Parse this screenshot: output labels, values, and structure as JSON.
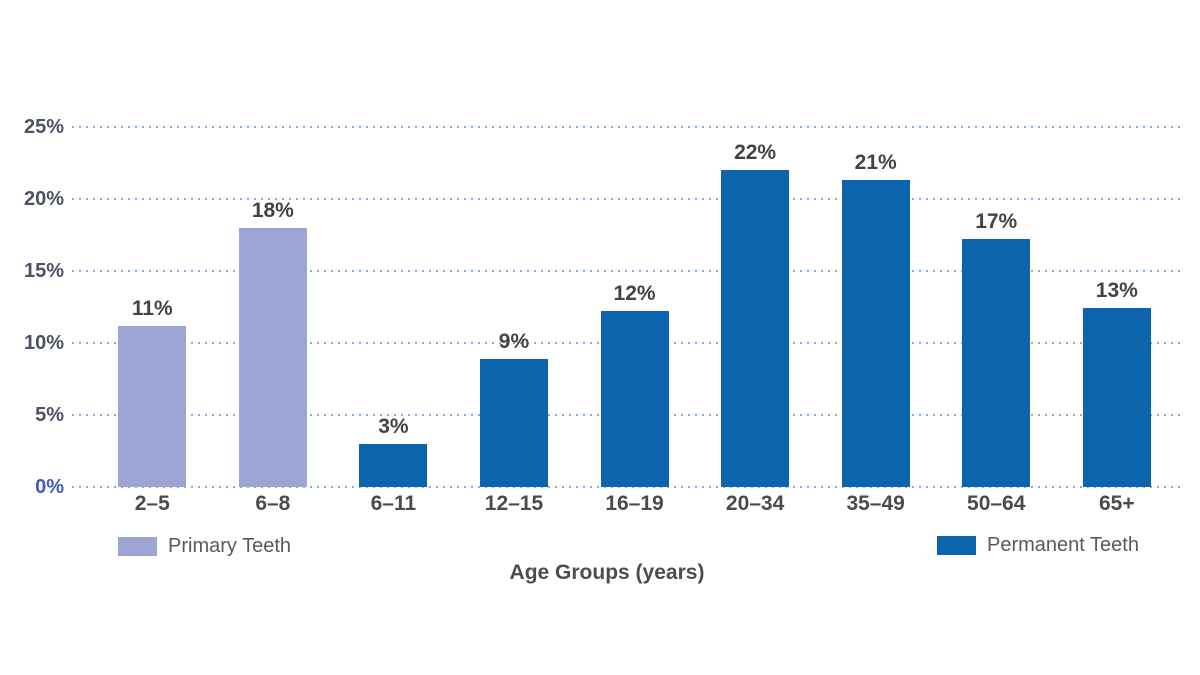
{
  "chart_data": {
    "type": "bar",
    "title": "",
    "xlabel": "Age Groups (years)",
    "ylabel": "",
    "ylim": [
      0,
      25
    ],
    "ytick_interval": 5,
    "yticks": [
      {
        "label": "0%",
        "value": 0
      },
      {
        "label": "5%",
        "value": 5
      },
      {
        "label": "10%",
        "value": 10
      },
      {
        "label": "15%",
        "value": 15
      },
      {
        "label": "20%",
        "value": 20
      },
      {
        "label": "25%",
        "value": 25
      }
    ],
    "grid": {
      "horizontal": true,
      "style": "dotted"
    },
    "categories": [
      "2–5",
      "6–8",
      "6–11",
      "12–15",
      "16–19",
      "20–34",
      "35–49",
      "50–64",
      "65+"
    ],
    "bars": [
      {
        "category": "2–5",
        "value": 11,
        "label": "11%",
        "series": "Primary Teeth",
        "drawn_height_pct": 11.2
      },
      {
        "category": "6–8",
        "value": 18,
        "label": "18%",
        "series": "Primary Teeth",
        "drawn_height_pct": 18.0
      },
      {
        "category": "6–11",
        "value": 3,
        "label": "3%",
        "series": "Permanent Teeth",
        "drawn_height_pct": 3.0
      },
      {
        "category": "12–15",
        "value": 9,
        "label": "9%",
        "series": "Permanent Teeth",
        "drawn_height_pct": 8.9
      },
      {
        "category": "16–19",
        "value": 12,
        "label": "12%",
        "series": "Permanent Teeth",
        "drawn_height_pct": 12.2
      },
      {
        "category": "20–34",
        "value": 22,
        "label": "22%",
        "series": "Permanent Teeth",
        "drawn_height_pct": 22.0
      },
      {
        "category": "35–49",
        "value": 21,
        "label": "21%",
        "series": "Permanent Teeth",
        "drawn_height_pct": 21.3
      },
      {
        "category": "50–64",
        "value": 17,
        "label": "17%",
        "series": "Permanent Teeth",
        "drawn_height_pct": 17.2
      },
      {
        "category": "65+",
        "value": 13,
        "label": "13%",
        "series": "Permanent Teeth",
        "drawn_height_pct": 12.4
      }
    ],
    "legend": {
      "position": "bottom",
      "items": [
        {
          "label": "Primary Teeth",
          "color": "#9CA5D3"
        },
        {
          "label": "Permanent Teeth",
          "color": "#0B64AC"
        }
      ]
    }
  },
  "colors": {
    "primary_teeth": "#9CA5D3",
    "permanent_teeth": "#0B64AC",
    "gridline_dots": "#85AEDE",
    "ytick_text": "#4B5264",
    "ytick_zero_text": "#4356C6",
    "data_label_text": "#434343",
    "category_label_text": "#4B4B4B",
    "legend_text": "#595959",
    "axis_title_text": "#4D4D4D",
    "background": "#FFFFFF"
  }
}
